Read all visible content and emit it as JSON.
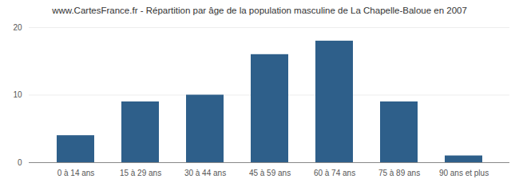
{
  "chart_data": {
    "type": "bar",
    "title": "www.CartesFrance.fr - Répartition par âge de la population masculine de La Chapelle-Baloue en 2007",
    "categories": [
      "0 à 14 ans",
      "15 à 29 ans",
      "30 à 44 ans",
      "45 à 59 ans",
      "60 à 74 ans",
      "75 à 89 ans",
      "90 ans et plus"
    ],
    "values": [
      4,
      9,
      10,
      16,
      18,
      9,
      1
    ],
    "color": "#2e5f8a",
    "ylim": [
      0,
      20
    ],
    "yticks": [
      0,
      10,
      20
    ],
    "grid": true
  }
}
